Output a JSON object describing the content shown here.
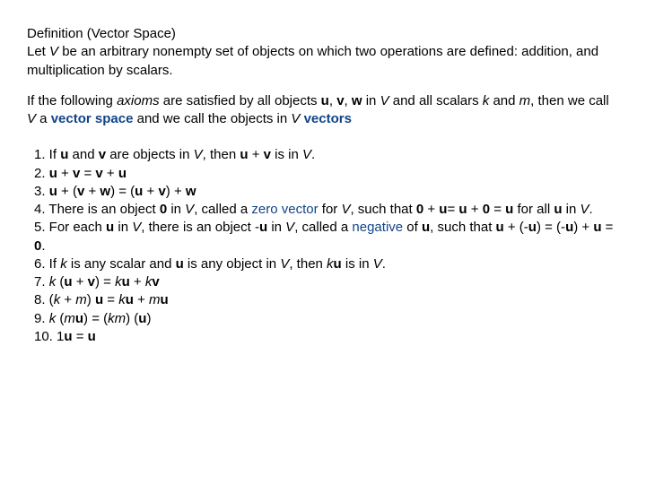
{
  "colors": {
    "text": "#000000",
    "term": "#114488",
    "background": "#ffffff"
  },
  "typography": {
    "font_family": "Arial, Helvetica, sans-serif",
    "font_size_pt": 11,
    "line_height": 1.35
  },
  "heading": {
    "title": "Definition (Vector Space)",
    "line1_a": "Let ",
    "line1_V": "V",
    "line1_b": " be an arbitrary nonempty set of objects on which two operations are defined: addition, and multiplication by scalars."
  },
  "intro": {
    "a": "If the following ",
    "axioms": "axioms",
    "b": " are satisfied by all objects ",
    "u": "u",
    "c": ", ",
    "v": "v",
    "d": ", ",
    "w": "w",
    "e": " in ",
    "V1": "V",
    "f": " and all scalars ",
    "k": "k",
    "g": " and ",
    "m": "m",
    "h": ", then we call ",
    "V2": "V",
    "i": " a ",
    "vector_space": "vector space",
    "j": " and we call the objects in ",
    "V3": "V",
    "k2": " ",
    "vectors": "vectors"
  },
  "ax1": {
    "a": "1.  If ",
    "u": "u",
    "b": " and ",
    "v": "v",
    "c": " are objects in ",
    "V": "V",
    "d": ", then ",
    "u2": "u",
    "e": " + ",
    "v2": "v",
    "f": " is in ",
    "V2": "V",
    "g": "."
  },
  "ax2": {
    "a": "2. ",
    "u": "u",
    "b": " + ",
    "v": "v",
    "c": " = ",
    "v2": "v",
    "d": " + ",
    "u2": "u"
  },
  "ax3": {
    "a": "3. ",
    "u": "u",
    "b": " + (",
    "v": "v",
    "c": " + ",
    "w": "w",
    "d": ") = (",
    "u2": "u",
    "e": " + ",
    "v2": "v",
    "f": ") + ",
    "w2": "w"
  },
  "ax4": {
    "a": "4. There is an object ",
    "zero": "0",
    "b": " in ",
    "V": "V",
    "c": ", called a ",
    "zv": "zero vector",
    "d": " for ",
    "V2": "V",
    "e": ", such that ",
    "zero2": "0",
    "f": " + ",
    "u": "u",
    "g": "= ",
    "u2": "u",
    "h": " + ",
    "zero3": "0",
    "i": " = ",
    "u3": "u",
    "j": " for all ",
    "u4": "u",
    "k": " in ",
    "V3": "V",
    "l": "."
  },
  "ax5": {
    "a": "5. For each ",
    "u": "u",
    "b": " in ",
    "V": "V",
    "c": ", there is an object -",
    "u2": "u",
    "d": " in ",
    "V2": "V",
    "e": ", called a ",
    "neg": "negative",
    "f": " of ",
    "u3": "u",
    "g": ", such that ",
    "u4": "u",
    "h": " + (-",
    "u5": "u",
    "i": ") = (-",
    "u6": "u",
    "j": ") + ",
    "u7": "u",
    "k": " = ",
    "zero": "0",
    "l": "."
  },
  "ax6": {
    "a": "6. If ",
    "k": "k",
    "b": " is any scalar and ",
    "u": "u",
    "c": " is any object in ",
    "V": "V",
    "d": ", then ",
    "k2": "k",
    "u2": "u",
    "e": " is in ",
    "V2": "V",
    "f": "."
  },
  "ax7": {
    "a": "7. ",
    "k": "k",
    "b": " (",
    "u": "u",
    "c": " + ",
    "v": "v",
    "d": ") = ",
    "k2": "k",
    "u2": "u",
    "e": " + ",
    "k3": "k",
    "v2": "v"
  },
  "ax8": {
    "a": "8. (",
    "k": "k",
    "b": " + ",
    "m": "m",
    "c": ") ",
    "u": "u",
    "d": " = ",
    "k2": "k",
    "u2": "u",
    "e": " + ",
    "m2": "m",
    "u3": "u"
  },
  "ax9": {
    "a": "9. ",
    "k": "k",
    "b": " (",
    "m": "m",
    "u": "u",
    "c": ") = (",
    "k2": "k",
    "m2": "m",
    "d": ") (",
    "u2": "u",
    "e": ")"
  },
  "ax10": {
    "a": "10. 1",
    "u": "u",
    "b": " = ",
    "u2": "u"
  }
}
